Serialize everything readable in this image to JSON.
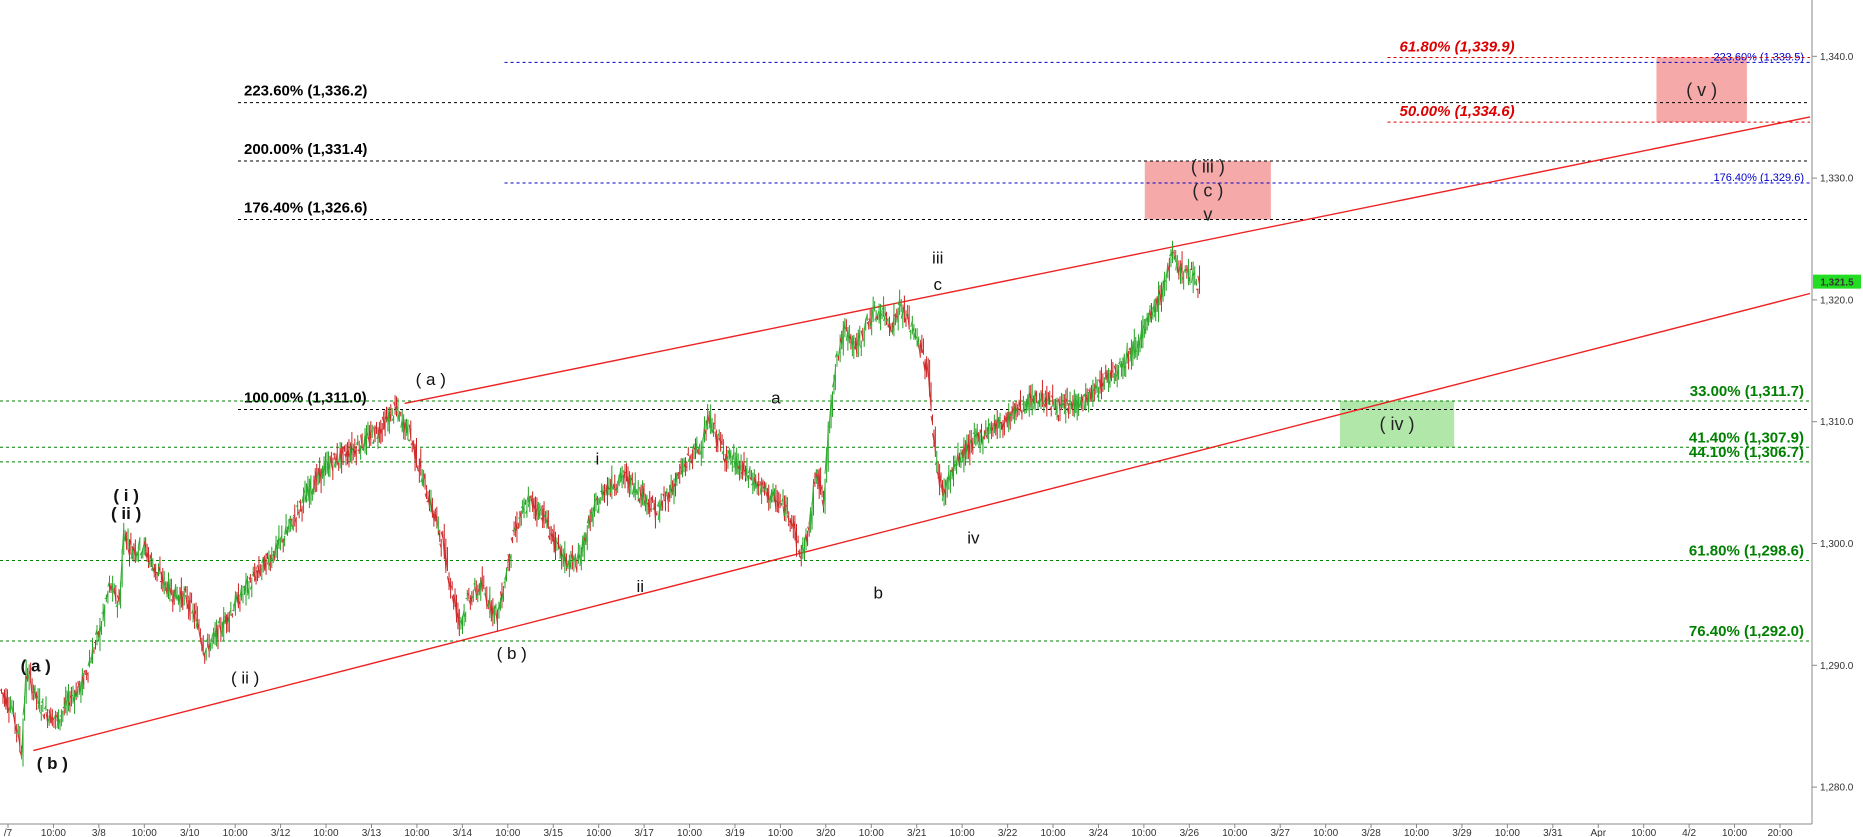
{
  "chart_data": {
    "type": "line",
    "title": "",
    "xlabel": "",
    "ylabel": "",
    "ylim": [
      1276.0,
      1342.0
    ],
    "y_ticks": [
      1280.0,
      1290.0,
      1300.0,
      1310.0,
      1320.0,
      1330.0,
      1340.0
    ],
    "y_tick_labels": [
      "1,280.0",
      "1,290.0",
      "1,300.0",
      "1,310.0",
      "1,320.0",
      "1,330.0",
      "1,340.0"
    ],
    "grid": false,
    "last_price": 1321.5,
    "last_price_label": "1,321.5",
    "x_tick_labels": [
      "/7",
      "10:00",
      "3/8",
      "10:00",
      "3/10",
      "10:00",
      "3/12",
      "10:00",
      "3/13",
      "10:00",
      "3/14",
      "10:00",
      "3/15",
      "10:00",
      "3/17",
      "10:00",
      "3/19",
      "10:00",
      "3/20",
      "10:00",
      "3/21",
      "10:00",
      "3/22",
      "10:00",
      "3/24",
      "10:00",
      "3/26",
      "10:00",
      "3/27",
      "10:00",
      "3/28",
      "10:00",
      "3/29",
      "10:00",
      "3/31",
      "Apr",
      "10:00",
      "4/2",
      "10:00",
      "20:00"
    ],
    "price_path": [
      [
        0,
        1288.0
      ],
      [
        5,
        1286.5
      ],
      [
        9,
        1283.0
      ],
      [
        11,
        1289.5
      ],
      [
        16,
        1287.0
      ],
      [
        20,
        1286.0
      ],
      [
        24,
        1285.5
      ],
      [
        30,
        1287.5
      ],
      [
        34,
        1288.2
      ],
      [
        37,
        1290.0
      ],
      [
        42,
        1293.0
      ],
      [
        46,
        1296.5
      ],
      [
        50,
        1295.0
      ],
      [
        52,
        1301.0
      ],
      [
        55,
        1299.5
      ],
      [
        60,
        1299.8
      ],
      [
        66,
        1297.5
      ],
      [
        72,
        1296.0
      ],
      [
        78,
        1295.5
      ],
      [
        83,
        1293.5
      ],
      [
        86,
        1291.2
      ],
      [
        91,
        1292.5
      ],
      [
        97,
        1294.5
      ],
      [
        104,
        1296.5
      ],
      [
        110,
        1298.0
      ],
      [
        116,
        1299.5
      ],
      [
        122,
        1301.5
      ],
      [
        130,
        1304.5
      ],
      [
        138,
        1306.5
      ],
      [
        146,
        1307.5
      ],
      [
        154,
        1308.5
      ],
      [
        160,
        1309.5
      ],
      [
        166,
        1311.0
      ],
      [
        172,
        1309.0
      ],
      [
        178,
        1305.0
      ],
      [
        186,
        1300.0
      ],
      [
        190,
        1296.0
      ],
      [
        193,
        1293.5
      ],
      [
        197,
        1295.5
      ],
      [
        202,
        1296.5
      ],
      [
        209,
        1294.0
      ],
      [
        216,
        1301.0
      ],
      [
        222,
        1303.5
      ],
      [
        228,
        1302.5
      ],
      [
        234,
        1299.5
      ],
      [
        238,
        1298.5
      ],
      [
        243,
        1298.5
      ],
      [
        248,
        1302.0
      ],
      [
        254,
        1304.5
      ],
      [
        262,
        1305.5
      ],
      [
        270,
        1304.0
      ],
      [
        276,
        1302.5
      ],
      [
        282,
        1304.5
      ],
      [
        288,
        1306.5
      ],
      [
        294,
        1308.0
      ],
      [
        298,
        1310.2
      ],
      [
        304,
        1307.5
      ],
      [
        312,
        1306.0
      ],
      [
        320,
        1304.5
      ],
      [
        326,
        1303.5
      ],
      [
        332,
        1302.5
      ],
      [
        336,
        1299.0
      ],
      [
        340,
        1301.0
      ],
      [
        343,
        1306.5
      ],
      [
        346,
        1303.0
      ],
      [
        348,
        1309.0
      ],
      [
        351,
        1315.0
      ],
      [
        355,
        1317.5
      ],
      [
        360,
        1316.0
      ],
      [
        365,
        1318.5
      ],
      [
        370,
        1319.0
      ],
      [
        375,
        1318.0
      ],
      [
        378,
        1319.5
      ],
      [
        382,
        1318.0
      ],
      [
        386,
        1316.5
      ],
      [
        390,
        1314.0
      ],
      [
        393,
        1307.0
      ],
      [
        396,
        1304.0
      ],
      [
        400,
        1306.0
      ],
      [
        405,
        1307.5
      ],
      [
        410,
        1308.5
      ],
      [
        416,
        1309.5
      ],
      [
        422,
        1310.0
      ],
      [
        430,
        1311.5
      ],
      [
        438,
        1312.0
      ],
      [
        446,
        1311.0
      ],
      [
        452,
        1311.5
      ],
      [
        458,
        1312.0
      ],
      [
        464,
        1313.5
      ],
      [
        470,
        1314.5
      ],
      [
        476,
        1316.0
      ],
      [
        482,
        1318.0
      ],
      [
        488,
        1320.5
      ],
      [
        492,
        1323.5
      ],
      [
        496,
        1322.5
      ],
      [
        500,
        1322.0
      ],
      [
        504,
        1321.5
      ]
    ],
    "lines": [
      {
        "name": "channel-upper",
        "points": [
          [
            170,
            1311.5
          ],
          [
            760,
            1335.0
          ]
        ]
      },
      {
        "name": "channel-lower",
        "points": [
          [
            14,
            1283.0
          ],
          [
            760,
            1320.5
          ]
        ]
      }
    ],
    "levels": [
      {
        "label": "223.60% (1,336.2)",
        "value": 1336.2,
        "color": "#000000",
        "from": 100,
        "to": 760,
        "label_side": "left"
      },
      {
        "label": "200.00% (1,331.4)",
        "value": 1331.4,
        "color": "#000000",
        "from": 100,
        "to": 760,
        "label_side": "left"
      },
      {
        "label": "176.40% (1,326.6)",
        "value": 1326.6,
        "color": "#000000",
        "from": 100,
        "to": 760,
        "label_side": "left"
      },
      {
        "label": "100.00% (1,311.0)",
        "value": 1311.0,
        "color": "#000000",
        "from": 100,
        "to": 760,
        "label_side": "left"
      },
      {
        "label": "223.60% (1,339.5)",
        "value": 1339.5,
        "color": "#0000cc",
        "from": 212,
        "to": 760,
        "label_side": "right_small"
      },
      {
        "label": "176.40% (1,329.6)",
        "value": 1329.6,
        "color": "#0000cc",
        "from": 212,
        "to": 760,
        "label_side": "right_small"
      },
      {
        "label": "61.80% (1,339.9)",
        "value": 1339.9,
        "color": "#dd0000",
        "from": 583,
        "to": 760,
        "label_side": "red"
      },
      {
        "label": "50.00% (1,334.6)",
        "value": 1334.6,
        "color": "#dd0000",
        "from": 583,
        "to": 760,
        "label_side": "red"
      },
      {
        "label": "33.00% (1,311.7)",
        "value": 1311.7,
        "color": "#008000",
        "from": 0,
        "to": 760,
        "label_side": "right"
      },
      {
        "label": "41.40% (1,307.9)",
        "value": 1307.9,
        "color": "#008000",
        "from": 0,
        "to": 760,
        "label_side": "right"
      },
      {
        "label": "44.10% (1,306.7)",
        "value": 1306.7,
        "color": "#008000",
        "from": 0,
        "to": 760,
        "label_side": "right"
      },
      {
        "label": "61.80% (1,298.6)",
        "value": 1298.6,
        "color": "#008000",
        "from": 0,
        "to": 760,
        "label_side": "right"
      },
      {
        "label": "76.40% (1,292.0)",
        "value": 1292.0,
        "color": "#008000",
        "from": 0,
        "to": 760,
        "label_side": "right"
      }
    ],
    "zones": [
      {
        "label": "( iii )\n( c )\nv",
        "x0": 481,
        "x1": 534,
        "y0": 1326.6,
        "y1": 1331.4,
        "color": "#f4a0a0"
      },
      {
        "label": "( v )",
        "x0": 696,
        "x1": 734,
        "y0": 1334.6,
        "y1": 1339.9,
        "color": "#f4a0a0"
      },
      {
        "label": "( iv )",
        "x0": 563,
        "x1": 611,
        "y0": 1307.9,
        "y1": 1311.7,
        "color": "#a8e6a0"
      }
    ],
    "wave_labels": [
      {
        "text": "( a )",
        "x": 15,
        "y": 1289.5,
        "bold": true
      },
      {
        "text": "( b )",
        "x": 22,
        "y": 1281.5,
        "bold": true
      },
      {
        "text": "( i )",
        "x": 53,
        "y": 1303.5,
        "bold": true
      },
      {
        "text": "( ii )",
        "x": 53,
        "y": 1302.0,
        "bold": true
      },
      {
        "text": "( ii )",
        "x": 103,
        "y": 1288.5,
        "bold": false
      },
      {
        "text": "( a )",
        "x": 181,
        "y": 1313.0,
        "bold": false
      },
      {
        "text": "( b )",
        "x": 215,
        "y": 1290.5,
        "bold": false
      },
      {
        "text": "i",
        "x": 251,
        "y": 1306.5,
        "bold": false
      },
      {
        "text": "ii",
        "x": 269,
        "y": 1296.0,
        "bold": false
      },
      {
        "text": "a",
        "x": 326,
        "y": 1311.5,
        "bold": false
      },
      {
        "text": "b",
        "x": 369,
        "y": 1295.5,
        "bold": false
      },
      {
        "text": "iii",
        "x": 394,
        "y": 1323.0,
        "bold": false
      },
      {
        "text": "c",
        "x": 394,
        "y": 1320.8,
        "bold": false
      },
      {
        "text": "iv",
        "x": 409,
        "y": 1300.0,
        "bold": false
      }
    ]
  }
}
